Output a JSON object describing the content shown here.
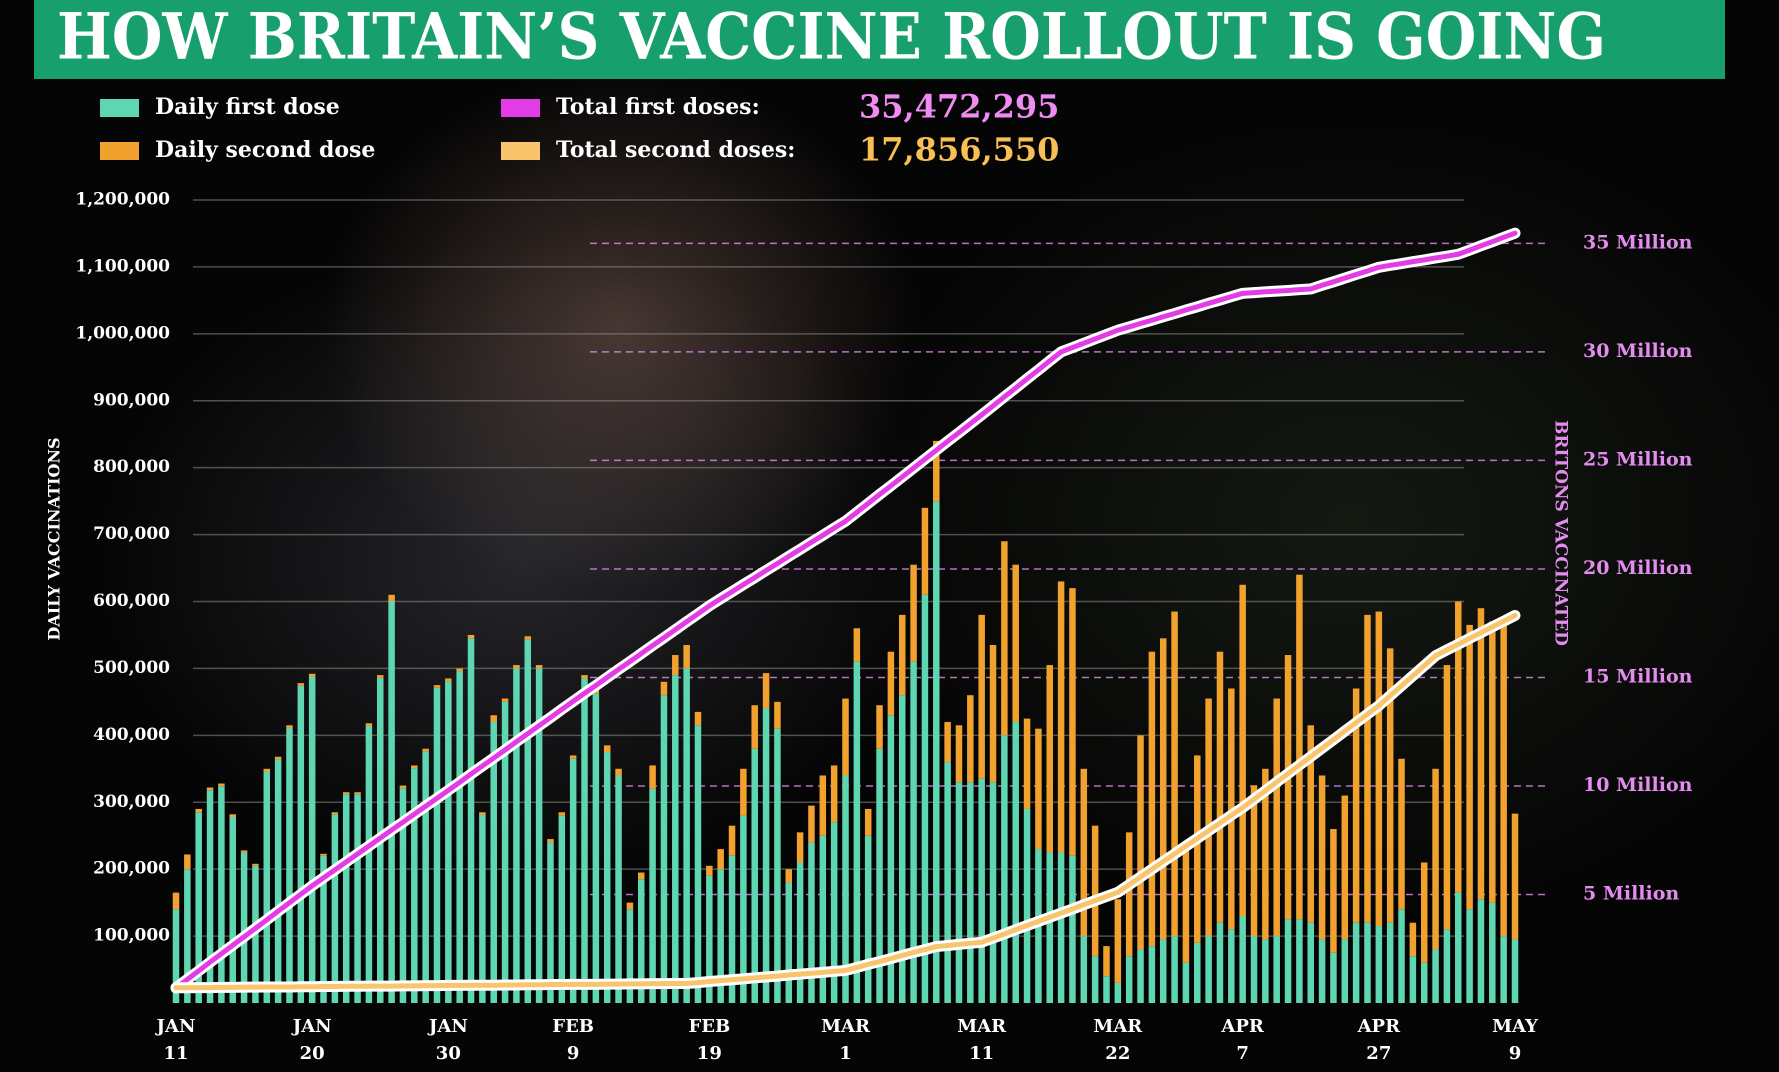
{
  "chart_data": {
    "type": "bar",
    "title": "HOW BRITAIN’S VACCINE ROLLOUT IS GOING",
    "y_label": "DAILY VACCINATIONS",
    "y2_label": "BRITONS VACCINATED",
    "categories": [
      "JAN 11",
      null,
      null,
      null,
      null,
      null,
      null,
      null,
      null,
      null,
      null,
      null,
      "JAN 20",
      null,
      null,
      null,
      null,
      null,
      null,
      null,
      null,
      null,
      null,
      null,
      "JAN 30",
      null,
      null,
      null,
      null,
      null,
      null,
      null,
      null,
      null,
      null,
      "FEB 9",
      null,
      null,
      null,
      null,
      null,
      null,
      null,
      null,
      null,
      null,
      null,
      "FEB 19",
      null,
      null,
      null,
      null,
      null,
      null,
      null,
      null,
      null,
      null,
      null,
      "MAR 1",
      null,
      null,
      null,
      null,
      null,
      null,
      null,
      null,
      null,
      null,
      null,
      "MAR 11",
      null,
      null,
      null,
      null,
      null,
      null,
      null,
      null,
      null,
      null,
      null,
      "MAR 22",
      null,
      null,
      null,
      null,
      null,
      null,
      null,
      null,
      null,
      null,
      "APR 7",
      null,
      null,
      null,
      null,
      null,
      null,
      null,
      null,
      null,
      null,
      null,
      "APR 27",
      null,
      null,
      null,
      null,
      null,
      null,
      null,
      null,
      null,
      null,
      null,
      "MAY 9"
    ],
    "series": [
      {
        "name": "Daily first dose",
        "color": "#5ed6b2",
        "values": [
          140000,
          200000,
          285000,
          318000,
          324000,
          278000,
          225000,
          205000,
          346000,
          364000,
          411000,
          474000,
          488000,
          220000,
          282000,
          312000,
          312000,
          414000,
          486000,
          600000,
          321000,
          351000,
          376000,
          471000,
          481000,
          496000,
          545000,
          281000,
          420000,
          450000,
          500000,
          543000,
          500000,
          240000,
          280000,
          365000,
          485000,
          462000,
          375000,
          340000,
          140000,
          185000,
          320000,
          460000,
          490000,
          500000,
          415000,
          190000,
          200000,
          220000,
          280000,
          380000,
          440000,
          410000,
          180000,
          210000,
          240000,
          250000,
          270000,
          340000,
          510000,
          250000,
          380000,
          430000,
          460000,
          510000,
          610000,
          750000,
          360000,
          330000,
          330000,
          335000,
          330000,
          400000,
          420000,
          290000,
          230000,
          225000,
          225000,
          220000,
          100000,
          70000,
          40000,
          30000,
          70000,
          80000,
          85000,
          95000,
          100000,
          60000,
          90000,
          100000,
          120000,
          110000,
          130000,
          100000,
          95000,
          100000,
          125000,
          125000,
          120000,
          95000,
          75000,
          95000,
          120000,
          120000,
          115000,
          120000,
          140000,
          70000,
          60000,
          80000,
          110000,
          165000,
          140000,
          155000,
          150000,
          100000,
          95000
        ]
      },
      {
        "name": "Daily second dose",
        "color": "#f0a12e",
        "values": [
          25000,
          22000,
          5000,
          4000,
          4000,
          4000,
          3000,
          3000,
          4000,
          4000,
          4000,
          4000,
          4000,
          3000,
          3000,
          3000,
          3000,
          4000,
          4000,
          10000,
          4000,
          4000,
          4000,
          4000,
          4000,
          4000,
          5000,
          4000,
          10000,
          5000,
          5000,
          5000,
          5000,
          5000,
          5000,
          5000,
          5000,
          6000,
          10000,
          10000,
          10000,
          10000,
          35000,
          20000,
          30000,
          35000,
          20000,
          15000,
          30000,
          45000,
          70000,
          65000,
          53000,
          40000,
          20000,
          45000,
          55000,
          90000,
          85000,
          115000,
          50000,
          40000,
          65000,
          95000,
          120000,
          145000,
          130000,
          90000,
          60000,
          85000,
          130000,
          245000,
          205000,
          290000,
          235000,
          135000,
          180000,
          280000,
          405000,
          400000,
          250000,
          195000,
          45000,
          125000,
          185000,
          320000,
          440000,
          450000,
          485000,
          170000,
          280000,
          355000,
          405000,
          360000,
          495000,
          225000,
          255000,
          355000,
          395000,
          515000,
          295000,
          245000,
          185000,
          215000,
          350000,
          460000,
          470000,
          410000,
          225000,
          50000,
          150000,
          270000,
          395000,
          435000,
          425000,
          435000,
          420000,
          475000,
          188000
        ]
      },
      {
        "name": "Total first doses:",
        "color": "#e33ce6",
        "type": "line",
        "axis": "y2",
        "total_label": "35,472,295",
        "total_color": "#ee8cf2",
        "values": [
          700000,
          1090000,
          1480000,
          1880000,
          2270000,
          2660000,
          3050000,
          3440000,
          3830000,
          4230000,
          4620000,
          5010000,
          5400000,
          5770000,
          6130000,
          6500000,
          6870000,
          7230000,
          7600000,
          7970000,
          8330000,
          8700000,
          9070000,
          9430000,
          9800000,
          10170000,
          10550000,
          10920000,
          11290000,
          11660000,
          12040000,
          12410000,
          12780000,
          13150000,
          13530000,
          13900000,
          14270000,
          14630000,
          15000000,
          15370000,
          15730000,
          16100000,
          16470000,
          16830000,
          17200000,
          17570000,
          17930000,
          18300000,
          18630000,
          18950000,
          19280000,
          19600000,
          19930000,
          20250000,
          20580000,
          20900000,
          21230000,
          21550000,
          21880000,
          22200000,
          22610000,
          23020000,
          23430000,
          23830000,
          24240000,
          24650000,
          25060000,
          25470000,
          25880000,
          26280000,
          26690000,
          27100000,
          27510000,
          27930000,
          28340000,
          28760000,
          29170000,
          29590000,
          30000000,
          30200000,
          30400000,
          30600000,
          30800000,
          31000000,
          31150000,
          31310000,
          31460000,
          31620000,
          31770000,
          31930000,
          32080000,
          32240000,
          32390000,
          32550000,
          32700000,
          32730000,
          32770000,
          32800000,
          32830000,
          32870000,
          32900000,
          33070000,
          33230000,
          33400000,
          33570000,
          33730000,
          33900000,
          33990000,
          34070000,
          34160000,
          34240000,
          34330000,
          34410000,
          34500000,
          34690000,
          34890000,
          35080000,
          35280000,
          35472295
        ]
      },
      {
        "name": "Total second doses:",
        "color": "#f8c46c",
        "type": "line",
        "axis": "y2",
        "total_label": "17,856,550",
        "total_color": "#f7bf55",
        "values": [
          700000,
          700000,
          710000,
          710000,
          720000,
          720000,
          730000,
          730000,
          740000,
          740000,
          740000,
          750000,
          750000,
          760000,
          760000,
          770000,
          770000,
          780000,
          780000,
          780000,
          790000,
          790000,
          800000,
          800000,
          810000,
          810000,
          820000,
          820000,
          820000,
          830000,
          830000,
          840000,
          840000,
          850000,
          850000,
          860000,
          860000,
          860000,
          870000,
          870000,
          880000,
          880000,
          890000,
          890000,
          900000,
          900000,
          940000,
          990000,
          1030000,
          1070000,
          1110000,
          1160000,
          1200000,
          1240000,
          1290000,
          1330000,
          1370000,
          1410000,
          1460000,
          1500000,
          1640000,
          1780000,
          1910000,
          2050000,
          2190000,
          2330000,
          2460000,
          2600000,
          2650000,
          2700000,
          2750000,
          2800000,
          2990000,
          3180000,
          3380000,
          3570000,
          3760000,
          3950000,
          4140000,
          4330000,
          4530000,
          4720000,
          4910000,
          5100000,
          5450000,
          5810000,
          6160000,
          6520000,
          6870000,
          7230000,
          7580000,
          7940000,
          8290000,
          8650000,
          9000000,
          9390000,
          9780000,
          10180000,
          10570000,
          10960000,
          11350000,
          11740000,
          12130000,
          12530000,
          12920000,
          13310000,
          13700000,
          14160000,
          14620000,
          15080000,
          15540000,
          16000000,
          16270000,
          16530000,
          16800000,
          17060000,
          17330000,
          17590000,
          17856550
        ]
      }
    ],
    "ylim": [
      0,
      1200000
    ],
    "yticks": [
      {
        "value": 100000,
        "label": "100,000"
      },
      {
        "value": 200000,
        "label": "200,000"
      },
      {
        "value": 300000,
        "label": "300,000"
      },
      {
        "value": 400000,
        "label": "400,000"
      },
      {
        "value": 500000,
        "label": "500,000"
      },
      {
        "value": 600000,
        "label": "600,000"
      },
      {
        "value": 700000,
        "label": "700,000"
      },
      {
        "value": 800000,
        "label": "800,000"
      },
      {
        "value": 900000,
        "label": "900,000"
      },
      {
        "value": 1000000,
        "label": "1,000,000"
      },
      {
        "value": 1100000,
        "label": "1,100,000"
      },
      {
        "value": 1200000,
        "label": "1,200,000"
      }
    ],
    "y2lim": [
      0,
      37000000
    ],
    "y2ticks": [
      {
        "value": 5000000,
        "label": "5 Million"
      },
      {
        "value": 10000000,
        "label": "10 Million"
      },
      {
        "value": 15000000,
        "label": "15 Million"
      },
      {
        "value": 20000000,
        "label": "20 Million"
      },
      {
        "value": 25000000,
        "label": "25 Million"
      },
      {
        "value": 30000000,
        "label": "30 Million"
      },
      {
        "value": 35000000,
        "label": "35 Million"
      }
    ],
    "y2_color": "#e48cf0",
    "grid": true,
    "y2_grid": true,
    "banner_color": "#17a06e"
  }
}
